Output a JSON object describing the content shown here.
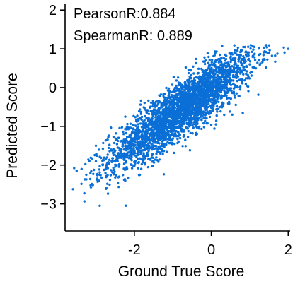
{
  "chart_data": {
    "type": "scatter",
    "xlabel": "Ground True Score",
    "ylabel": "Predicted Score",
    "xlim": [
      -3.8,
      2.05
    ],
    "ylim": [
      -3.7,
      2.15
    ],
    "xticks": [
      -2,
      0,
      2
    ],
    "xtick_labels": [
      "-2",
      "0",
      "2"
    ],
    "yticks": [
      2,
      1,
      0,
      -1,
      -2,
      -3
    ],
    "ytick_labels": [
      "2",
      "1",
      "0",
      "−1",
      "−2",
      "−3"
    ],
    "grid": false,
    "point_color": "#0a6fd6",
    "annotations": [
      "PearsonR:0.884",
      "SpearmanR: 0.889"
    ],
    "series": [
      {
        "points_summary": "dense cloud of several thousand points along a positive diagonal",
        "x_mean": -0.75,
        "y_mean": -0.55,
        "x_sd": 0.95,
        "y_sd": 0.75,
        "correlation": 0.884,
        "x_range": [
          -3.6,
          2.0
        ],
        "y_range": [
          -3.1,
          1.1
        ],
        "x": [
          -3.5,
          -3.25,
          -3.0,
          -2.9,
          -2.6,
          -2.4,
          -2.0,
          -1.5,
          -1.0,
          -0.5,
          0.0,
          0.5,
          1.0,
          1.5,
          2.0
        ],
        "y": [
          -2.15,
          -2.25,
          -1.5,
          -3.05,
          -1.6,
          -1.3,
          -1.65,
          -1.5,
          -1.0,
          -0.55,
          -0.2,
          0.15,
          0.6,
          0.9,
          1.0
        ]
      }
    ]
  }
}
